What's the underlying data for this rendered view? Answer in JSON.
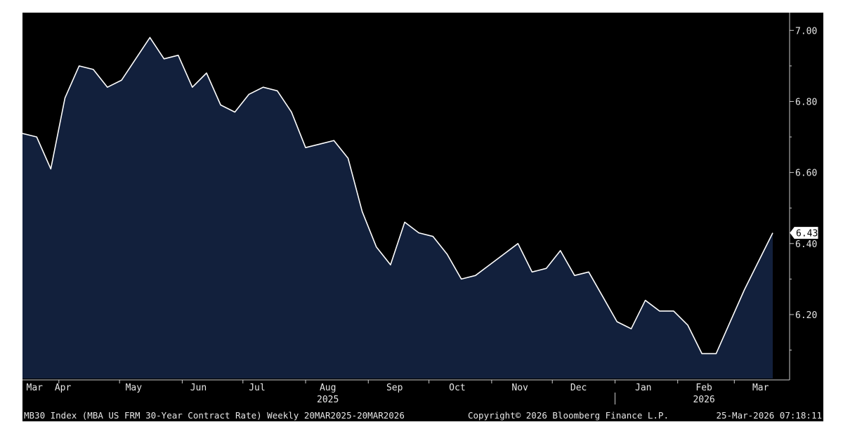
{
  "chart_data": {
    "type": "area",
    "y_range": [
      6.02,
      7.05
    ],
    "y_ticks": [
      "6.20",
      "6.40",
      "6.60",
      "6.80",
      "7.00"
    ],
    "last_value_label": "6.43",
    "x_month_labels": [
      {
        "label": "Mar",
        "date": "2025-03-20"
      },
      {
        "label": "Apr",
        "date": "2025-04-03"
      },
      {
        "label": "May",
        "date": "2025-05-08"
      },
      {
        "label": "Jun",
        "date": "2025-06-09"
      },
      {
        "label": "Jul",
        "date": "2025-07-08"
      },
      {
        "label": "Aug",
        "date": "2025-08-12"
      },
      {
        "label": "Sep",
        "date": "2025-09-14"
      },
      {
        "label": "Oct",
        "date": "2025-10-15"
      },
      {
        "label": "Nov",
        "date": "2025-11-15"
      },
      {
        "label": "Dec",
        "date": "2025-12-14"
      },
      {
        "label": "Jan",
        "date": "2026-01-15"
      },
      {
        "label": "Feb",
        "date": "2026-02-14"
      },
      {
        "label": "Mar",
        "date": "2026-03-14"
      }
    ],
    "x_year_labels": [
      {
        "label": "2025",
        "date": "2025-08-12"
      },
      {
        "label": "2026",
        "date": "2026-02-14"
      }
    ],
    "series": [
      {
        "x": [
          "2025-03-14",
          "2025-03-21",
          "2025-03-28",
          "2025-04-04",
          "2025-04-11",
          "2025-04-18",
          "2025-04-25",
          "2025-05-02",
          "2025-05-09",
          "2025-05-16",
          "2025-05-23",
          "2025-05-30",
          "2025-06-06",
          "2025-06-13",
          "2025-06-20",
          "2025-06-27",
          "2025-07-04",
          "2025-07-11",
          "2025-07-18",
          "2025-07-25",
          "2025-08-01",
          "2025-08-08",
          "2025-08-15",
          "2025-08-22",
          "2025-08-29",
          "2025-09-05",
          "2025-09-12",
          "2025-09-19",
          "2025-09-26",
          "2025-10-03",
          "2025-10-10",
          "2025-10-17",
          "2025-10-24",
          "2025-10-31",
          "2025-11-07",
          "2025-11-14",
          "2025-11-21",
          "2025-11-28",
          "2025-12-05",
          "2025-12-12",
          "2025-12-19",
          "2025-12-26",
          "2026-01-02",
          "2026-01-09",
          "2026-01-16",
          "2026-01-23",
          "2026-01-30",
          "2026-02-06",
          "2026-02-13",
          "2026-02-20",
          "2026-02-27",
          "2026-03-06",
          "2026-03-13",
          "2026-03-20"
        ],
        "values": [
          6.71,
          6.7,
          6.61,
          6.81,
          6.9,
          6.89,
          6.84,
          6.86,
          6.92,
          6.98,
          6.92,
          6.93,
          6.84,
          6.88,
          6.79,
          6.77,
          6.82,
          6.84,
          6.83,
          6.77,
          6.67,
          6.68,
          6.69,
          6.64,
          6.49,
          6.39,
          6.34,
          6.46,
          6.43,
          6.42,
          6.37,
          6.3,
          6.31,
          6.34,
          6.37,
          6.4,
          6.32,
          6.33,
          6.38,
          6.31,
          6.32,
          6.25,
          6.18,
          6.16,
          6.24,
          6.21,
          6.21,
          6.17,
          6.09,
          6.09,
          6.18,
          6.27,
          6.35,
          6.43
        ]
      }
    ],
    "colors": {
      "background": "#000000",
      "area_fill": "#12203c",
      "line": "#ffffff",
      "axis": "#cccccc",
      "text": "#e6e6e6"
    }
  },
  "footer": {
    "description": "MB30 Index (MBA US FRM 30-Year Contract Rate) Weekly 20MAR2025-20MAR2026",
    "copyright": "Copyright© 2026 Bloomberg Finance L.P.",
    "timestamp": "25-Mar-2026 07:18:11"
  }
}
